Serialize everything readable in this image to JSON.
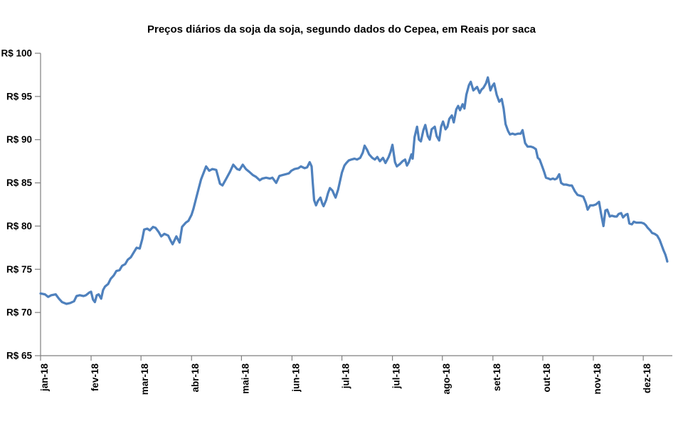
{
  "page": {
    "background": "#FFFFFF"
  },
  "chart_data": {
    "type": "line",
    "title": "Preços diários da soja da soja, segundo dados do Cepea, em Reais por saca",
    "grid": false,
    "legend": "none",
    "axis_color": "#7F7F7F",
    "text_color": "#000000",
    "x_axis": {
      "tick_labels": [
        "jan-18",
        "fev-18",
        "mar-18",
        "abr-18",
        "mai-18",
        "jun-18",
        "jul-18",
        "jul-18",
        "ago-18",
        "set-18",
        "out-18",
        "nov-18",
        "dez-18"
      ],
      "tick_positions": [
        0,
        0.08,
        0.159,
        0.239,
        0.318,
        0.398,
        0.477,
        0.557,
        0.636,
        0.716,
        0.795,
        0.875,
        0.954
      ]
    },
    "y_axis": {
      "min": 65,
      "max": 100,
      "step": 5,
      "tick_values": [
        100,
        95,
        90,
        85,
        80,
        75,
        70,
        65
      ],
      "tick_labels": [
        "R$ 100",
        "R$ 95",
        "R$ 90",
        "R$ 85",
        "R$ 80",
        "R$ 75",
        "R$ 70",
        "R$ 65"
      ]
    },
    "series": [
      {
        "color": "#4F81BD",
        "unit": "R$ por saca",
        "points": [
          [
            0,
            72.2
          ],
          [
            0.007,
            72.1
          ],
          [
            0.012,
            71.8
          ],
          [
            0.017,
            72
          ],
          [
            0.024,
            72.1
          ],
          [
            0.029,
            71.6
          ],
          [
            0.034,
            71.2
          ],
          [
            0.041,
            71
          ],
          [
            0.047,
            71.1
          ],
          [
            0.053,
            71.3
          ],
          [
            0.057,
            71.9
          ],
          [
            0.062,
            72
          ],
          [
            0.068,
            71.9
          ],
          [
            0.072,
            72
          ],
          [
            0.077,
            72.3
          ],
          [
            0.08,
            72.4
          ],
          [
            0.083,
            71.5
          ],
          [
            0.086,
            71.2
          ],
          [
            0.089,
            72
          ],
          [
            0.092,
            72.1
          ],
          [
            0.096,
            71.6
          ],
          [
            0.099,
            72.6
          ],
          [
            0.102,
            73
          ],
          [
            0.107,
            73.3
          ],
          [
            0.111,
            73.9
          ],
          [
            0.116,
            74.3
          ],
          [
            0.12,
            74.8
          ],
          [
            0.125,
            74.9
          ],
          [
            0.129,
            75.4
          ],
          [
            0.134,
            75.6
          ],
          [
            0.138,
            76.1
          ],
          [
            0.143,
            76.4
          ],
          [
            0.148,
            77
          ],
          [
            0.152,
            77.5
          ],
          [
            0.157,
            77.4
          ],
          [
            0.161,
            78.5
          ],
          [
            0.164,
            79.6
          ],
          [
            0.169,
            79.7
          ],
          [
            0.173,
            79.5
          ],
          [
            0.178,
            79.9
          ],
          [
            0.182,
            79.8
          ],
          [
            0.187,
            79.3
          ],
          [
            0.191,
            78.8
          ],
          [
            0.196,
            79.1
          ],
          [
            0.202,
            78.9
          ],
          [
            0.206,
            78.3
          ],
          [
            0.209,
            77.9
          ],
          [
            0.215,
            78.8
          ],
          [
            0.22,
            78.1
          ],
          [
            0.224,
            79.9
          ],
          [
            0.23,
            80.4
          ],
          [
            0.234,
            80.6
          ],
          [
            0.239,
            81.3
          ],
          [
            0.242,
            82
          ],
          [
            0.248,
            83.7
          ],
          [
            0.254,
            85.4
          ],
          [
            0.262,
            86.9
          ],
          [
            0.267,
            86.4
          ],
          [
            0.272,
            86.6
          ],
          [
            0.278,
            86.5
          ],
          [
            0.284,
            84.9
          ],
          [
            0.288,
            84.7
          ],
          [
            0.294,
            85.5
          ],
          [
            0.3,
            86.3
          ],
          [
            0.305,
            87.1
          ],
          [
            0.311,
            86.6
          ],
          [
            0.315,
            86.5
          ],
          [
            0.32,
            87.1
          ],
          [
            0.325,
            86.6
          ],
          [
            0.33,
            86.3
          ],
          [
            0.336,
            85.9
          ],
          [
            0.341,
            85.7
          ],
          [
            0.347,
            85.3
          ],
          [
            0.351,
            85.5
          ],
          [
            0.357,
            85.6
          ],
          [
            0.363,
            85.5
          ],
          [
            0.367,
            85.6
          ],
          [
            0.373,
            85
          ],
          [
            0.378,
            85.8
          ],
          [
            0.383,
            85.9
          ],
          [
            0.388,
            86
          ],
          [
            0.393,
            86.1
          ],
          [
            0.397,
            86.4
          ],
          [
            0.402,
            86.6
          ],
          [
            0.408,
            86.7
          ],
          [
            0.412,
            86.9
          ],
          [
            0.418,
            86.7
          ],
          [
            0.422,
            86.8
          ],
          [
            0.426,
            87.4
          ],
          [
            0.429,
            86.9
          ],
          [
            0.431,
            84.9
          ],
          [
            0.433,
            83
          ],
          [
            0.436,
            82.4
          ],
          [
            0.439,
            82.9
          ],
          [
            0.443,
            83.3
          ],
          [
            0.446,
            82.6
          ],
          [
            0.448,
            82.3
          ],
          [
            0.452,
            83
          ],
          [
            0.455,
            83.8
          ],
          [
            0.458,
            84.4
          ],
          [
            0.462,
            84.1
          ],
          [
            0.465,
            83.6
          ],
          [
            0.467,
            83.3
          ],
          [
            0.471,
            84.2
          ],
          [
            0.474,
            85.2
          ],
          [
            0.477,
            86.2
          ],
          [
            0.481,
            87
          ],
          [
            0.484,
            87.3
          ],
          [
            0.488,
            87.6
          ],
          [
            0.492,
            87.7
          ],
          [
            0.497,
            87.8
          ],
          [
            0.501,
            87.7
          ],
          [
            0.506,
            87.9
          ],
          [
            0.51,
            88.5
          ],
          [
            0.513,
            89.3
          ],
          [
            0.517,
            88.8
          ],
          [
            0.52,
            88.3
          ],
          [
            0.525,
            87.9
          ],
          [
            0.529,
            87.7
          ],
          [
            0.533,
            88
          ],
          [
            0.537,
            87.5
          ],
          [
            0.542,
            87.9
          ],
          [
            0.546,
            87.3
          ],
          [
            0.551,
            88
          ],
          [
            0.554,
            88.6
          ],
          [
            0.557,
            89.4
          ],
          [
            0.561,
            87.4
          ],
          [
            0.564,
            86.9
          ],
          [
            0.569,
            87.2
          ],
          [
            0.573,
            87.5
          ],
          [
            0.577,
            87.7
          ],
          [
            0.58,
            87
          ],
          [
            0.583,
            87.4
          ],
          [
            0.587,
            88.3
          ],
          [
            0.589,
            87.8
          ],
          [
            0.592,
            90.3
          ],
          [
            0.596,
            91.5
          ],
          [
            0.599,
            90
          ],
          [
            0.602,
            89.8
          ],
          [
            0.606,
            91.1
          ],
          [
            0.609,
            91.7
          ],
          [
            0.613,
            90.4
          ],
          [
            0.616,
            90
          ],
          [
            0.619,
            91.2
          ],
          [
            0.624,
            91.5
          ],
          [
            0.627,
            90.4
          ],
          [
            0.631,
            89.9
          ],
          [
            0.634,
            91.5
          ],
          [
            0.637,
            92.1
          ],
          [
            0.641,
            91.2
          ],
          [
            0.644,
            91.5
          ],
          [
            0.647,
            92.4
          ],
          [
            0.651,
            92.8
          ],
          [
            0.654,
            92
          ],
          [
            0.658,
            93.5
          ],
          [
            0.661,
            93.9
          ],
          [
            0.664,
            93.4
          ],
          [
            0.668,
            94.1
          ],
          [
            0.671,
            93.6
          ],
          [
            0.674,
            95.2
          ],
          [
            0.678,
            96.3
          ],
          [
            0.681,
            96.7
          ],
          [
            0.685,
            95.7
          ],
          [
            0.688,
            95.9
          ],
          [
            0.691,
            96.1
          ],
          [
            0.695,
            95.4
          ],
          [
            0.698,
            95.8
          ],
          [
            0.701,
            96
          ],
          [
            0.705,
            96.5
          ],
          [
            0.708,
            97.2
          ],
          [
            0.712,
            95.7
          ],
          [
            0.715,
            96.2
          ],
          [
            0.718,
            96.5
          ],
          [
            0.722,
            95.2
          ],
          [
            0.724,
            94.8
          ],
          [
            0.726,
            94.4
          ],
          [
            0.73,
            94.7
          ],
          [
            0.733,
            93.6
          ],
          [
            0.736,
            91.8
          ],
          [
            0.74,
            91
          ],
          [
            0.743,
            90.6
          ],
          [
            0.747,
            90.7
          ],
          [
            0.751,
            90.6
          ],
          [
            0.756,
            90.7
          ],
          [
            0.76,
            90.7
          ],
          [
            0.763,
            91.1
          ],
          [
            0.767,
            89.6
          ],
          [
            0.771,
            89.2
          ],
          [
            0.776,
            89.2
          ],
          [
            0.78,
            89.1
          ],
          [
            0.784,
            88.9
          ],
          [
            0.787,
            87.9
          ],
          [
            0.79,
            87.7
          ],
          [
            0.794,
            86.9
          ],
          [
            0.797,
            86.3
          ],
          [
            0.8,
            85.6
          ],
          [
            0.804,
            85.5
          ],
          [
            0.807,
            85.4
          ],
          [
            0.811,
            85.5
          ],
          [
            0.814,
            85.4
          ],
          [
            0.817,
            85.5
          ],
          [
            0.821,
            86
          ],
          [
            0.824,
            85
          ],
          [
            0.828,
            84.8
          ],
          [
            0.832,
            84.8
          ],
          [
            0.837,
            84.7
          ],
          [
            0.841,
            84.7
          ],
          [
            0.846,
            84
          ],
          [
            0.85,
            83.6
          ],
          [
            0.855,
            83.5
          ],
          [
            0.859,
            83.4
          ],
          [
            0.863,
            82.7
          ],
          [
            0.866,
            81.9
          ],
          [
            0.87,
            82.4
          ],
          [
            0.875,
            82.4
          ],
          [
            0.879,
            82.5
          ],
          [
            0.884,
            82.8
          ],
          [
            0.887,
            81.5
          ],
          [
            0.891,
            80
          ],
          [
            0.894,
            81.8
          ],
          [
            0.897,
            81.9
          ],
          [
            0.901,
            81.1
          ],
          [
            0.904,
            81.2
          ],
          [
            0.909,
            81.1
          ],
          [
            0.912,
            81.1
          ],
          [
            0.915,
            81.4
          ],
          [
            0.919,
            81.5
          ],
          [
            0.922,
            81
          ],
          [
            0.926,
            81.3
          ],
          [
            0.929,
            81.4
          ],
          [
            0.932,
            80.3
          ],
          [
            0.936,
            80.2
          ],
          [
            0.939,
            80.5
          ],
          [
            0.943,
            80.4
          ],
          [
            0.947,
            80.4
          ],
          [
            0.951,
            80.4
          ],
          [
            0.955,
            80.3
          ],
          [
            0.958,
            80.1
          ],
          [
            0.961,
            79.8
          ],
          [
            0.965,
            79.5
          ],
          [
            0.968,
            79.2
          ],
          [
            0.972,
            79.1
          ],
          [
            0.976,
            78.9
          ],
          [
            0.98,
            78.4
          ],
          [
            0.983,
            77.8
          ],
          [
            0.986,
            77.2
          ],
          [
            0.989,
            76.7
          ],
          [
            0.991,
            76.2
          ],
          [
            0.992,
            75.9
          ]
        ]
      }
    ]
  }
}
